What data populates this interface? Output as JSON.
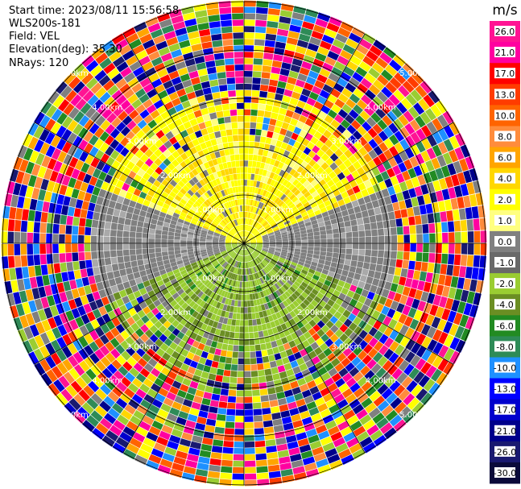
{
  "header": {
    "start_time": "Start time: 2023/08/11 15:56:58",
    "instrument": "WLS200s-181",
    "field": "Field: VEL",
    "elevation": "Elevation(deg): 35.30",
    "nrays": "NRays: 120"
  },
  "rings": {
    "unit": "km",
    "labels": [
      "1.00km",
      "2.00km",
      "3.00km",
      "4.00km",
      "5.00km"
    ]
  },
  "colorbar": {
    "unit": "m/s",
    "ticks": [
      "26.0",
      "21.0",
      "17.0",
      "13.0",
      "10.0",
      "8.0",
      "6.0",
      "4.0",
      "2.0",
      "1.0",
      "0.0",
      "-1.0",
      "-2.0",
      "-4.0",
      "-6.0",
      "-8.0",
      "-10.0",
      "-13.0",
      "-17.0",
      "-21.0",
      "-26.0",
      "-30.0"
    ],
    "colors": [
      "#ff1493",
      "#ff00a0",
      "#ff0000",
      "#ff3c00",
      "#ff6400",
      "#ff8c3c",
      "#ffa500",
      "#ffd700",
      "#ffff00",
      "#ffff80",
      "#808080",
      "#696969",
      "#9acd32",
      "#6b8e23",
      "#228b22",
      "#2e8b57",
      "#1e90ff",
      "#0000ff",
      "#0000cd",
      "#00008b",
      "#191970",
      "#0a0a3a"
    ]
  }
}
